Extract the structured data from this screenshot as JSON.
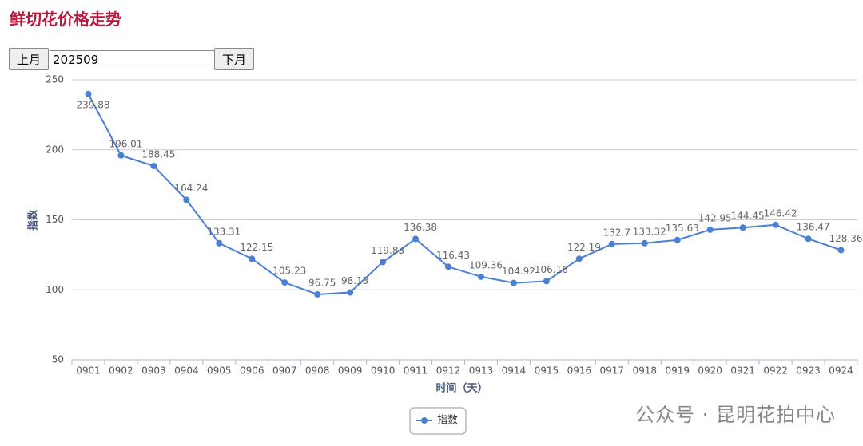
{
  "header": {
    "title": "鲜切花价格走势"
  },
  "controls": {
    "prev": "上月",
    "month": "202509",
    "next": "下月"
  },
  "chart_data": {
    "type": "line",
    "categories": [
      "0901",
      "0902",
      "0903",
      "0904",
      "0905",
      "0906",
      "0907",
      "0908",
      "0909",
      "0910",
      "0911",
      "0912",
      "0913",
      "0914",
      "0915",
      "0916",
      "0917",
      "0918",
      "0919",
      "0920",
      "0921",
      "0922",
      "0923",
      "0924"
    ],
    "series": [
      {
        "name": "指数",
        "color": "#4a7fd6",
        "values": [
          239.88,
          196.01,
          188.45,
          164.24,
          133.31,
          122.15,
          105.23,
          96.75,
          98.13,
          119.83,
          136.38,
          116.43,
          109.36,
          104.92,
          106.16,
          122.19,
          132.7,
          133.32,
          135.63,
          142.95,
          144.45,
          146.42,
          136.47,
          128.36
        ]
      }
    ],
    "ylim": [
      50,
      250
    ],
    "yticks": [
      50,
      100,
      150,
      200,
      250
    ],
    "ylabel": "指数",
    "xlabel": "时间（天）",
    "grid": true
  },
  "watermark": "公众号 · 昆明花拍中心"
}
